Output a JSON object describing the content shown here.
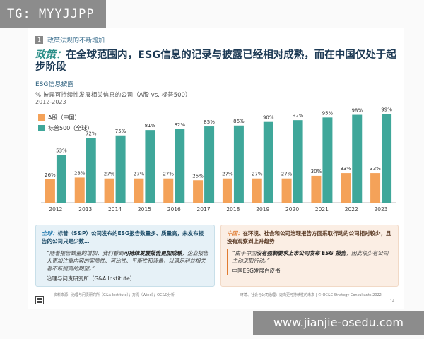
{
  "watermark_top": "TG: MYYJJPP",
  "watermark_bottom": "www.jianjie-osedu.com",
  "section": {
    "number": "1",
    "label": "政策法规的不断增加"
  },
  "title": {
    "lead": "政策：",
    "text": "在全球范围内，ESG信息的记录与披露已经相对成熟，而在中国仅处于起步阶段"
  },
  "subhead": "ESG信息披露",
  "chart_data": {
    "type": "bar",
    "title": "% 披露可持续性发展相关信息的公司（A股 vs. 标普500）",
    "subtitle": "2012-2023",
    "categories": [
      "2012",
      "2013",
      "2014",
      "2015",
      "2016",
      "2017",
      "2018",
      "2019",
      "2020",
      "2021",
      "2022",
      "2023"
    ],
    "series": [
      {
        "name": "A股（中国）",
        "color": "#f4a259",
        "values": [
          26,
          28,
          27,
          27,
          27,
          25,
          27,
          27,
          27,
          30,
          33,
          33
        ]
      },
      {
        "name": "标普500（全球）",
        "color": "#3fa79a",
        "values": [
          53,
          72,
          75,
          81,
          82,
          85,
          86,
          90,
          92,
          95,
          98,
          99
        ]
      }
    ],
    "ylim": [
      0,
      100
    ],
    "value_suffix": "%",
    "grid": false,
    "legend": "top-left"
  },
  "box_left": {
    "lead": "全球：",
    "text": "标普（S&P）公司发布的ESG报告数量多、质量高，未发布报告的公司只是少数…",
    "quote_pre": "“随着报告数量的增加，我们看到",
    "quote_bold": "可持续发展报告更加成熟",
    "quote_post": "，企业报告人更加注重内容的实质性、可比性、平衡性和背景，以满足利益相关者不断提高的期望。”",
    "attribution": "治理与问责研究所（G&A Institute）",
    "accent": "#2a7fb2"
  },
  "box_right": {
    "lead": "中国：",
    "text": "在环境、社会和公司治理报告方面采取行动的公司相对较少，且没有观察到上升趋势",
    "quote_pre": "“由于中国",
    "quote_bold": "没有强制要求上市公司发布 ESG 报告",
    "quote_post": "，因此很少有公司主动采取行动。”",
    "attribution": "中国ESG发展白皮书",
    "accent": "#e07b30"
  },
  "footer": {
    "source": "资料来源：治理与问责研究所（G&A Institute）；万得（Wind）；OC&C分析",
    "note": "环境、社会与公司治理：迈向更可持续性的未来 | © OC&C Strategy Consultants 2022",
    "page": "14"
  }
}
